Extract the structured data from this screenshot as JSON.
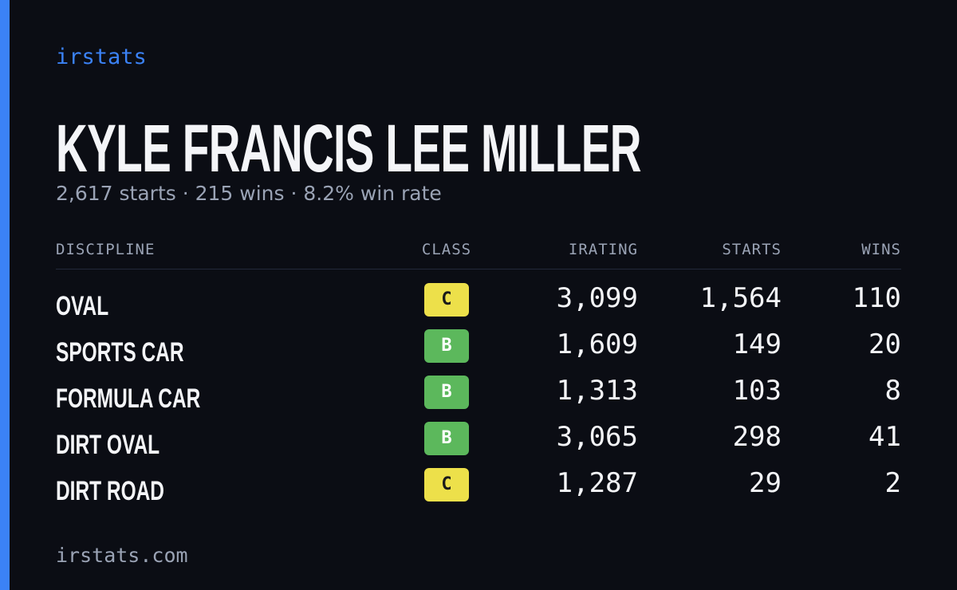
{
  "header": {
    "brand": "irstats",
    "name": "KYLE FRANCIS LEE MILLER",
    "summary": "2,617 starts · 215 wins · 8.2% win rate"
  },
  "table": {
    "columns": [
      "DISCIPLINE",
      "CLASS",
      "IRATING",
      "STARTS",
      "WINS"
    ],
    "rows": [
      [
        "OVAL",
        "C",
        "3,099",
        "1,564",
        "110"
      ],
      [
        "SPORTS CAR",
        "B",
        "1,609",
        "149",
        "20"
      ],
      [
        "FORMULA CAR",
        "B",
        "1,313",
        "103",
        "8"
      ],
      [
        "DIRT OVAL",
        "B",
        "3,065",
        "298",
        "41"
      ],
      [
        "DIRT ROAD",
        "C",
        "1,287",
        "29",
        "2"
      ]
    ]
  },
  "footer": {
    "site": "irstats.com"
  }
}
